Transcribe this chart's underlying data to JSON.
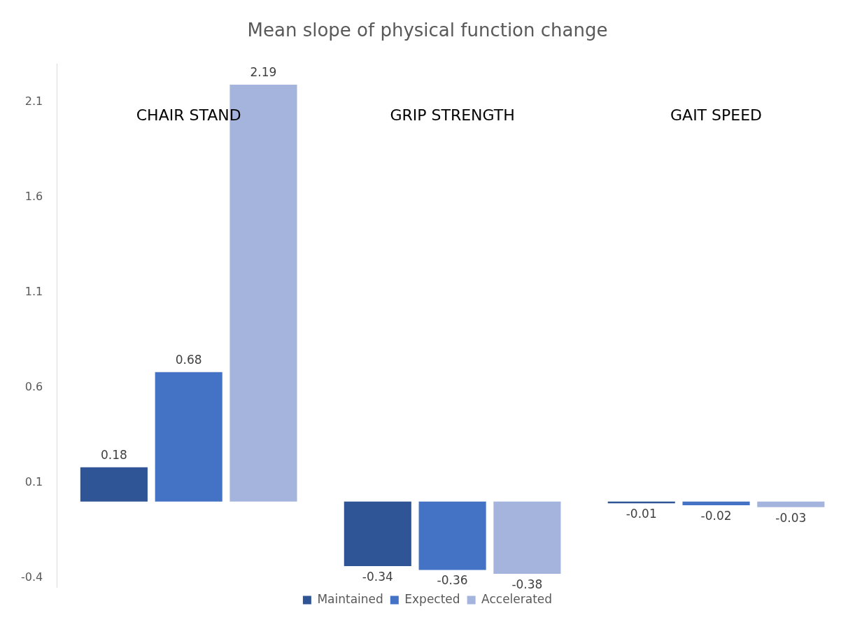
{
  "chart_data": {
    "type": "bar",
    "title": "Mean slope of physical function change",
    "categories": [
      "CHAIR STAND",
      "GRIP STRENGTH",
      "GAIT SPEED"
    ],
    "series": [
      {
        "name": "Maintained",
        "color": "#2f5597",
        "values": [
          0.18,
          -0.34,
          -0.01
        ]
      },
      {
        "name": "Expected",
        "color": "#4472c4",
        "values": [
          0.68,
          -0.36,
          -0.02
        ]
      },
      {
        "name": "Accelerated",
        "color": "#a5b4dc",
        "values": [
          2.19,
          -0.38,
          -0.03
        ]
      }
    ],
    "ylim": [
      -0.45,
      2.3
    ],
    "yticks": [
      -0.4,
      0.1,
      0.6,
      1.1,
      1.6,
      2.1
    ],
    "grid": false,
    "legend": "bottom",
    "data_labels": true
  }
}
